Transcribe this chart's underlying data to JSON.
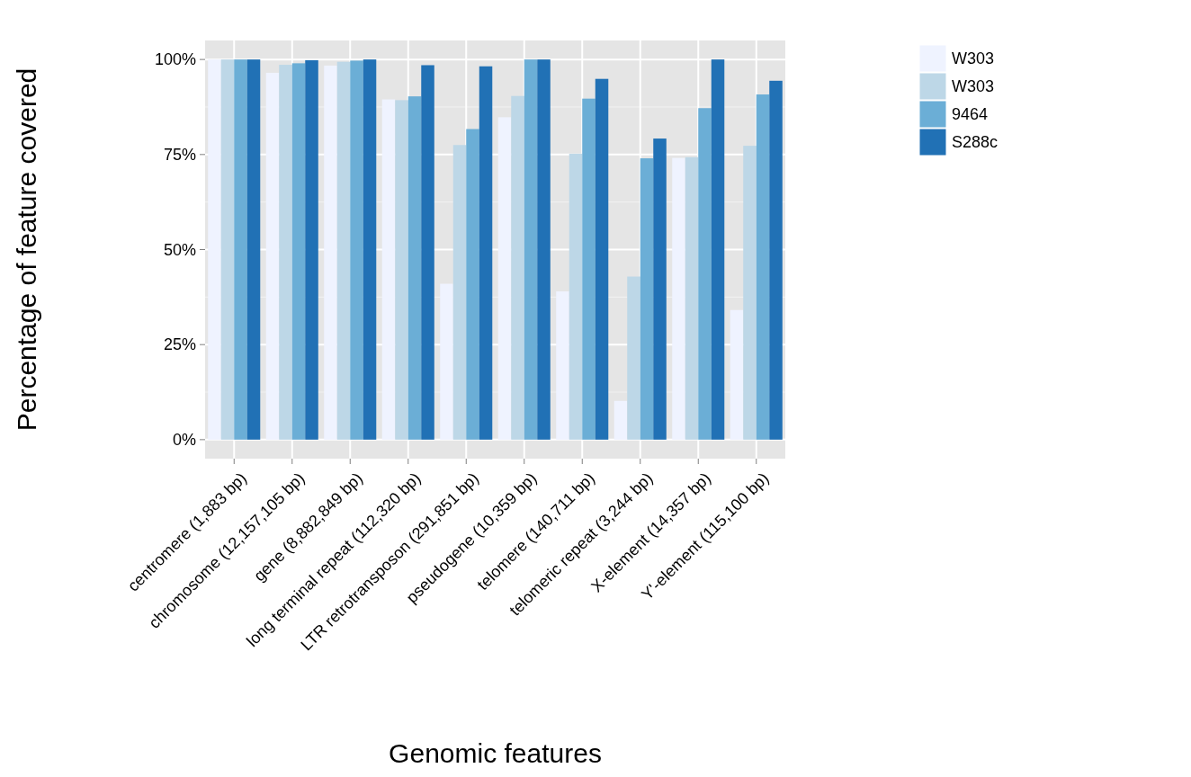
{
  "chart_data": {
    "type": "bar",
    "xlabel": "Genomic features",
    "ylabel": "Percentage of feature covered",
    "categories": [
      "centromere (1,883 bp)",
      "chromosome (12,157,105 bp)",
      "gene (8,882,849 bp)",
      "long terminal repeat (112,320 bp)",
      "LTR retrotransposon (291,851 bp)",
      "pseudogene (10,359 bp)",
      "telomere (140,711 bp)",
      "telomeric repeat (3,244 bp)",
      "X-element (14,357 bp)",
      "Y'-element (115,100 bp)"
    ],
    "series": [
      {
        "name": "W303",
        "color": "#eff3ff",
        "values": [
          100,
          96.5,
          98.4,
          89.5,
          41,
          84.8,
          39,
          10.2,
          74.1,
          34.1
        ]
      },
      {
        "name": "W303",
        "color": "#bdd7e7",
        "values": [
          100,
          98.6,
          99.4,
          89.3,
          77.5,
          90.4,
          75.2,
          42.9,
          74.3,
          77.3
        ]
      },
      {
        "name": "9464",
        "color": "#6baed6",
        "values": [
          100,
          99,
          99.7,
          90.3,
          81.7,
          100,
          89.7,
          74,
          87.2,
          90.8
        ]
      },
      {
        "name": "S288c",
        "color": "#2171b5",
        "values": [
          100,
          99.8,
          100,
          98.5,
          98.2,
          100,
          94.9,
          79.2,
          100,
          94.4
        ]
      }
    ],
    "ylim": [
      -5,
      105
    ],
    "yticks": [
      {
        "value": 0,
        "label": "0%"
      },
      {
        "value": 25,
        "label": "25%"
      },
      {
        "value": 50,
        "label": "50%"
      },
      {
        "value": 75,
        "label": "75%"
      },
      {
        "value": 100,
        "label": "100%"
      }
    ],
    "grid": true,
    "legend": "right"
  }
}
